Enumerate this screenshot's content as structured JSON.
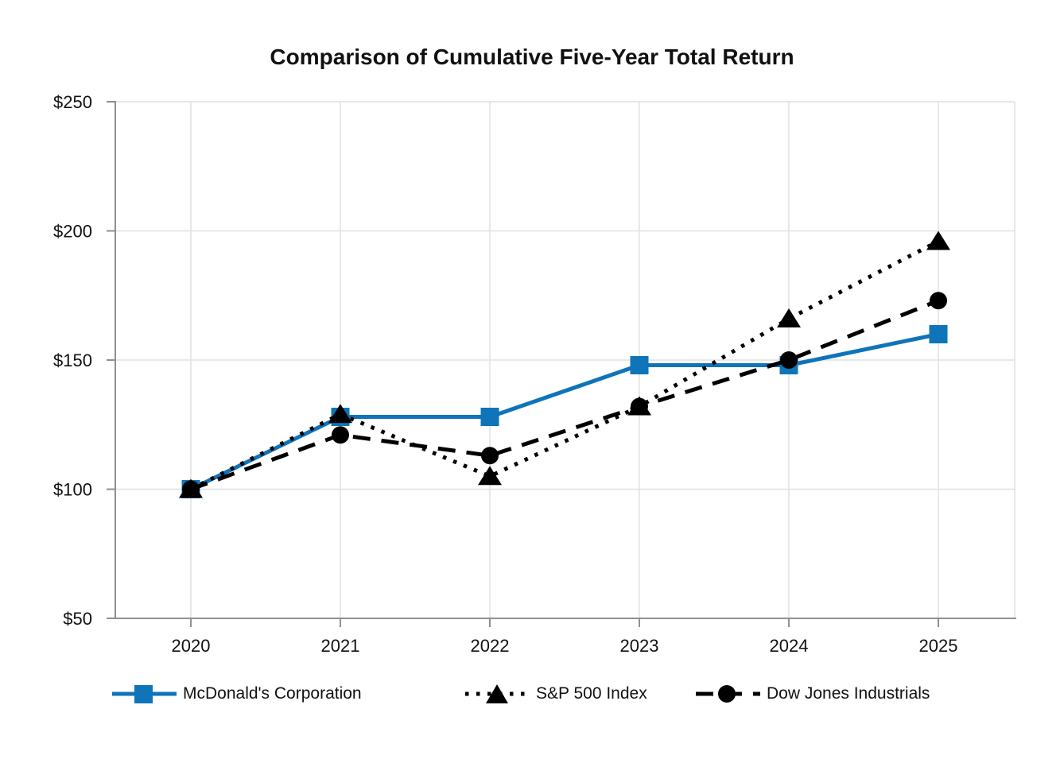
{
  "colors": {
    "accent": "#0f74b8",
    "series_black": "#000000",
    "grid": "#e0e0e0",
    "spine": "#909090",
    "text": "#111111"
  },
  "chart_data": {
    "type": "line",
    "title": "Comparison of Cumulative Five-Year Total Return",
    "x": [
      2020,
      2021,
      2022,
      2023,
      2024,
      2025
    ],
    "x_labels": [
      "2020",
      "2021",
      "2022",
      "2023",
      "2024",
      "2025"
    ],
    "y_ticks": [
      50,
      100,
      150,
      200,
      250
    ],
    "y_tick_labels": [
      "$50",
      "$100",
      "$150",
      "$200",
      "$250"
    ],
    "ylim": [
      50,
      250
    ],
    "grid": true,
    "legend_position": "bottom",
    "series": [
      {
        "name": "McDonald's Corporation",
        "marker": "square",
        "line_style": "solid",
        "color": "#0f74b8",
        "values": [
          100,
          128,
          128,
          148,
          148,
          160
        ]
      },
      {
        "name": "S&P 500 Index",
        "marker": "triangle",
        "line_style": "dotted",
        "color": "#000000",
        "values": [
          100,
          129,
          105,
          132,
          166,
          196
        ]
      },
      {
        "name": "Dow Jones Industrials",
        "marker": "circle",
        "line_style": "dashed",
        "color": "#000000",
        "values": [
          100,
          121,
          113,
          132,
          150,
          173
        ]
      }
    ]
  }
}
